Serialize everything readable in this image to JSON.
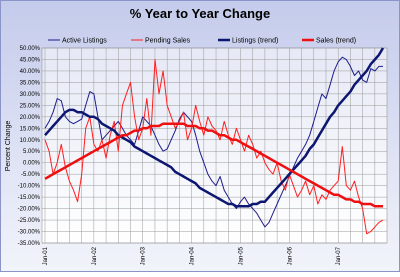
{
  "chart_data": {
    "type": "line",
    "title": "% Year to Year Change",
    "y_label": "Percent Change",
    "categories": [
      "Jan-01",
      null,
      null,
      null,
      null,
      null,
      null,
      null,
      null,
      null,
      null,
      null,
      "Jan-02",
      null,
      null,
      null,
      null,
      null,
      null,
      null,
      null,
      null,
      null,
      null,
      "Jan-03",
      null,
      null,
      null,
      null,
      null,
      null,
      null,
      null,
      null,
      null,
      null,
      "Jan-04",
      null,
      null,
      null,
      null,
      null,
      null,
      null,
      null,
      null,
      null,
      null,
      "Jan-05",
      null,
      null,
      null,
      null,
      null,
      null,
      null,
      null,
      null,
      null,
      null,
      "Jan-06",
      null,
      null,
      null,
      null,
      null,
      null,
      null,
      null,
      null,
      null,
      null,
      "Jan-07",
      null,
      null,
      null,
      null,
      null,
      null,
      null,
      null,
      null,
      null,
      null
    ],
    "series": [
      {
        "name": "Active Listings",
        "color": "#1c1c8c",
        "width": 1,
        "values": [
          15,
          18,
          22,
          28,
          27,
          20,
          18,
          17,
          18,
          19,
          25,
          31,
          30,
          20,
          10,
          12,
          14,
          16,
          18,
          15,
          12,
          10,
          8,
          14,
          20,
          18,
          16,
          12,
          8,
          5,
          6,
          10,
          14,
          19,
          22,
          20,
          18,
          12,
          5,
          0,
          -5,
          -8,
          -10,
          -6,
          -12,
          -15,
          -18,
          -20,
          -17,
          -15,
          -18,
          -20,
          -22,
          -25,
          -28,
          -26,
          -22,
          -18,
          -14,
          -10,
          -6,
          -2,
          2,
          5,
          8,
          12,
          18,
          24,
          30,
          28,
          34,
          40,
          44,
          46,
          45,
          42,
          38,
          40,
          36,
          35,
          41,
          40,
          42,
          42
        ]
      },
      {
        "name": "Pending Sales",
        "color": "#ff1f1f",
        "width": 1,
        "values": [
          10,
          5,
          -5,
          0,
          8,
          -2,
          -8,
          -12,
          -17,
          -5,
          15,
          20,
          8,
          5,
          10,
          2,
          12,
          18,
          5,
          25,
          30,
          35,
          20,
          10,
          15,
          28,
          12,
          45,
          30,
          40,
          25,
          20,
          15,
          18,
          22,
          10,
          15,
          25,
          18,
          12,
          20,
          16,
          14,
          10,
          18,
          12,
          8,
          15,
          10,
          5,
          12,
          8,
          2,
          5,
          0,
          -3,
          -5,
          0,
          -8,
          -12,
          -5,
          -10,
          -15,
          -12,
          -8,
          -14,
          -10,
          -18,
          -14,
          -16,
          -12,
          -10,
          -8,
          7,
          -10,
          -12,
          -8,
          -15,
          -20,
          -31,
          -30,
          -28,
          -26,
          -25
        ]
      },
      {
        "name": "Listings (trend)",
        "color": "#0d1670",
        "width": 2.5,
        "values": [
          12,
          14,
          16,
          18,
          20,
          22,
          23,
          23,
          22,
          22,
          21,
          20,
          20,
          19,
          17,
          16,
          15,
          14,
          12,
          11,
          10,
          9,
          7,
          6,
          5,
          4,
          3,
          2,
          1,
          0,
          -1,
          -2,
          -4,
          -5,
          -6,
          -7,
          -8,
          -9,
          -11,
          -12,
          -13,
          -14,
          -15,
          -16,
          -17,
          -18,
          -18,
          -19,
          -19,
          -19,
          -19,
          -18,
          -18,
          -17,
          -17,
          -15,
          -13,
          -11,
          -9,
          -7,
          -5,
          -3,
          -1,
          1,
          3,
          6,
          8,
          11,
          14,
          17,
          20,
          22,
          25,
          27,
          29,
          31,
          34,
          36,
          38,
          40,
          43,
          45,
          47,
          50
        ]
      },
      {
        "name": "Sales (trend)",
        "color": "#ee1010",
        "width": 2.5,
        "values": [
          -7,
          -6,
          -5,
          -4,
          -3,
          -2,
          -1,
          0,
          1,
          2,
          3,
          4,
          5,
          6,
          7,
          8,
          9,
          10,
          11,
          12,
          12,
          13,
          14,
          14,
          15,
          15,
          16,
          16,
          16,
          17,
          17,
          17,
          17,
          17,
          17,
          16,
          16,
          16,
          15,
          15,
          14,
          14,
          13,
          12,
          12,
          11,
          10,
          10,
          9,
          8,
          7,
          6,
          5,
          4,
          3,
          2,
          1,
          0,
          -1,
          -2,
          -3,
          -4,
          -5,
          -6,
          -7,
          -8,
          -9,
          -10,
          -11,
          -12,
          -13,
          -14,
          -14,
          -15,
          -16,
          -16,
          -17,
          -17,
          -18,
          -18,
          -18,
          -19,
          -19,
          -19
        ]
      }
    ],
    "ylim": [
      -35,
      50
    ],
    "yticks": [
      {
        "value": -35,
        "label": "-35.00%"
      },
      {
        "value": -30,
        "label": "-30.00%"
      },
      {
        "value": -25,
        "label": "-25.00%"
      },
      {
        "value": -20,
        "label": "-20.00%"
      },
      {
        "value": -15,
        "label": "-15.00%"
      },
      {
        "value": -10,
        "label": "-10.00%"
      },
      {
        "value": -5,
        "label": "-5.00%"
      },
      {
        "value": 0,
        "label": "0.00%"
      },
      {
        "value": 5,
        "label": "5.00%"
      },
      {
        "value": 10,
        "label": "10.00%"
      },
      {
        "value": 15,
        "label": "15.00%"
      },
      {
        "value": 20,
        "label": "20.00%"
      },
      {
        "value": 25,
        "label": "25.00%"
      },
      {
        "value": 30,
        "label": "30.00%"
      },
      {
        "value": 35,
        "label": "35.00%"
      },
      {
        "value": 40,
        "label": "40.00%"
      },
      {
        "value": 45,
        "label": "45.00%"
      },
      {
        "value": 50,
        "label": "50.00%"
      }
    ],
    "grid": true,
    "legend": "top"
  }
}
